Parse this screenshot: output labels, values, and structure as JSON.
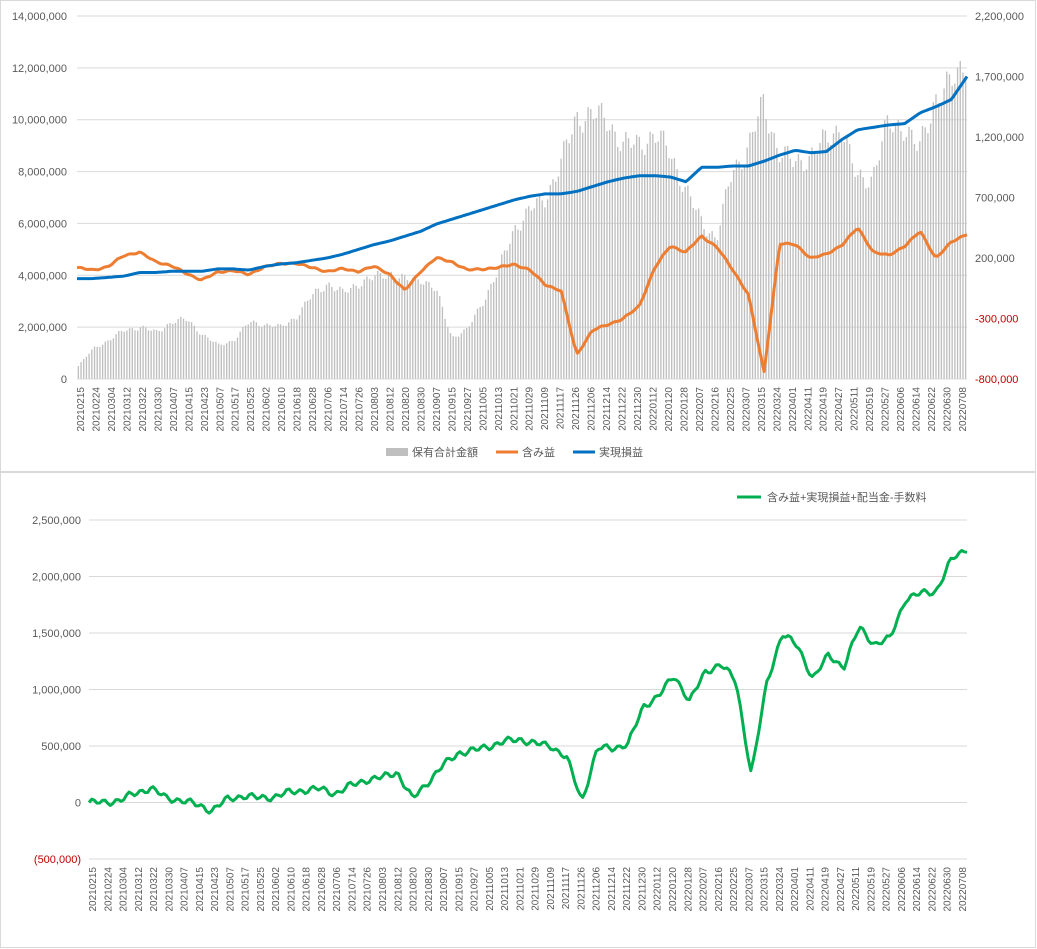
{
  "chart_data": [
    {
      "type": "bar",
      "name": "top-chart",
      "x_dates": [
        "20210215",
        "20210224",
        "20210304",
        "20210312",
        "20210322",
        "20210330",
        "20210407",
        "20210415",
        "20210423",
        "20210507",
        "20210517",
        "20210525",
        "20210602",
        "20210610",
        "20210618",
        "20210628",
        "20210706",
        "20210714",
        "20210726",
        "20210803",
        "20210812",
        "20210820",
        "20210830",
        "20210907",
        "20210915",
        "20210927",
        "20211005",
        "20211013",
        "20211021",
        "20211029",
        "20211109",
        "20211117",
        "20211126",
        "20211206",
        "20211214",
        "20211222",
        "20211230",
        "20220112",
        "20220120",
        "20220128",
        "20220207",
        "20220216",
        "20220225",
        "20220307",
        "20220315",
        "20220324",
        "20220401",
        "20220411",
        "20220419",
        "20220427",
        "20220511",
        "20220519",
        "20220527",
        "20220606",
        "20220614",
        "20220622",
        "20220630",
        "20220708"
      ],
      "y_left_ticks": [
        "0",
        "2,000,000",
        "4,000,000",
        "6,000,000",
        "8,000,000",
        "10,000,000",
        "12,000,000",
        "14,000,000"
      ],
      "y_left_range": [
        0,
        14000000
      ],
      "y_right_ticks": [
        "-800,000",
        "-300,000",
        "200,000",
        "700,000",
        "1,200,000",
        "1,700,000",
        "2,200,000"
      ],
      "y_right_range": [
        -800000,
        2200000
      ],
      "series": [
        {
          "name": "保有合計金額",
          "axis": "left",
          "kind": "bar",
          "color": "#bfbfbf",
          "values": [
            500000,
            1200000,
            1500000,
            1900000,
            2000000,
            1800000,
            2200000,
            2300000,
            1700000,
            1300000,
            1500000,
            2200000,
            2100000,
            2000000,
            2400000,
            3200000,
            3700000,
            3300000,
            3700000,
            3900000,
            4100000,
            3800000,
            3900000,
            3400000,
            1600000,
            1900000,
            3000000,
            4200000,
            5800000,
            6500000,
            7000000,
            8300000,
            10100000,
            10200000,
            10000000,
            9000000,
            9100000,
            9400000,
            8800000,
            7300000,
            6100000,
            5400000,
            8000000,
            8900000,
            10600000,
            8800000,
            8300000,
            8600000,
            9200000,
            9800000,
            7700000,
            7800000,
            9800000,
            9800000,
            8800000,
            10800000,
            11300000,
            12300000
          ]
        },
        {
          "name": "含み益",
          "axis": "right",
          "kind": "line",
          "color": "#ed7d31",
          "values": [
            120000,
            100000,
            130000,
            220000,
            250000,
            170000,
            140000,
            70000,
            20000,
            80000,
            100000,
            60000,
            130000,
            150000,
            160000,
            120000,
            90000,
            110000,
            90000,
            130000,
            70000,
            -70000,
            90000,
            200000,
            170000,
            100000,
            110000,
            120000,
            150000,
            100000,
            -20000,
            -70000,
            -600000,
            -400000,
            -350000,
            -300000,
            -200000,
            120000,
            300000,
            250000,
            380000,
            290000,
            100000,
            -100000,
            -750000,
            320000,
            310000,
            200000,
            230000,
            310000,
            450000,
            250000,
            220000,
            300000,
            420000,
            200000,
            330000,
            400000
          ]
        },
        {
          "name": "実現損益",
          "axis": "right",
          "kind": "line",
          "color": "#0070c0",
          "values": [
            30000,
            30000,
            40000,
            50000,
            80000,
            80000,
            90000,
            90000,
            90000,
            110000,
            110000,
            100000,
            130000,
            150000,
            160000,
            180000,
            200000,
            230000,
            270000,
            310000,
            340000,
            380000,
            420000,
            480000,
            520000,
            560000,
            600000,
            640000,
            680000,
            710000,
            730000,
            730000,
            750000,
            790000,
            830000,
            860000,
            880000,
            880000,
            870000,
            830000,
            950000,
            950000,
            960000,
            960000,
            1000000,
            1050000,
            1090000,
            1070000,
            1080000,
            1180000,
            1260000,
            1280000,
            1300000,
            1310000,
            1400000,
            1450000,
            1510000,
            1700000
          ]
        }
      ],
      "legend": "bottom"
    },
    {
      "type": "line",
      "name": "bottom-chart",
      "x_dates": [
        "20210215",
        "20210224",
        "20210304",
        "20210312",
        "20210322",
        "20210330",
        "20210407",
        "20210415",
        "20210423",
        "20210507",
        "20210517",
        "20210525",
        "20210602",
        "20210610",
        "20210618",
        "20210628",
        "20210706",
        "20210714",
        "20210726",
        "20210803",
        "20210812",
        "20210820",
        "20210830",
        "20210907",
        "20210915",
        "20210927",
        "20211005",
        "20211013",
        "20211021",
        "20211029",
        "20211109",
        "20211117",
        "20211126",
        "20211206",
        "20211214",
        "20211222",
        "20211230",
        "20220112",
        "20220120",
        "20220128",
        "20220207",
        "20220216",
        "20220225",
        "20220307",
        "20220315",
        "20220324",
        "20220401",
        "20220411",
        "20220419",
        "20220427",
        "20220511",
        "20220519",
        "20220527",
        "20220606",
        "20220614",
        "20220622",
        "20220630",
        "20220708"
      ],
      "y_ticks": [
        "(500,000)",
        "0",
        "500,000",
        "1,000,000",
        "1,500,000",
        "2,000,000",
        "2,500,000"
      ],
      "y_range": [
        -500000,
        2500000
      ],
      "series": [
        {
          "name": "含み益+実現損益+配当金-手数料",
          "color": "#00b050",
          "values": [
            0,
            0,
            20000,
            80000,
            130000,
            40000,
            20000,
            -20000,
            -70000,
            30000,
            60000,
            40000,
            50000,
            90000,
            110000,
            120000,
            80000,
            150000,
            200000,
            220000,
            270000,
            30000,
            180000,
            330000,
            440000,
            460000,
            500000,
            540000,
            560000,
            520000,
            500000,
            400000,
            10000,
            480000,
            480000,
            520000,
            850000,
            950000,
            1120000,
            900000,
            1150000,
            1230000,
            1070000,
            250000,
            1050000,
            1500000,
            1380000,
            1100000,
            1300000,
            1200000,
            1550000,
            1400000,
            1450000,
            1800000,
            1850000,
            1870000,
            2150000,
            2250000
          ]
        }
      ],
      "legend": "top-right"
    }
  ]
}
